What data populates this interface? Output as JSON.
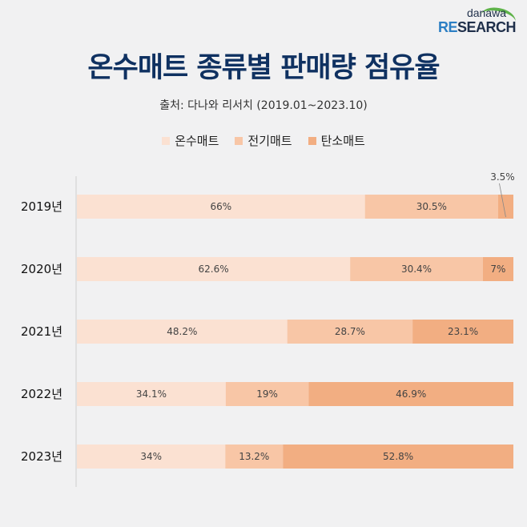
{
  "logo": {
    "top": "danawa",
    "re": "RE",
    "rest": "SEARCH"
  },
  "chart_data": {
    "type": "bar",
    "orientation": "horizontal",
    "stacked": true,
    "title": "온수매트 종류별 판매량 점유율",
    "subtitle": "출처: 다나와 리서치 (2019.01~2023.10)",
    "categories": [
      "2019년",
      "2020년",
      "2021년",
      "2022년",
      "2023년"
    ],
    "series": [
      {
        "name": "온수매트",
        "color": "#fbe1d2",
        "values": [
          66,
          62.6,
          48.2,
          34.1,
          34
        ],
        "labels": [
          "66%",
          "62.6%",
          "48.2%",
          "34.1%",
          "34%"
        ]
      },
      {
        "name": "전기매트",
        "color": "#f8c6a6",
        "values": [
          30.5,
          30.4,
          28.7,
          19,
          13.2
        ],
        "labels": [
          "30.5%",
          "30.4%",
          "28.7%",
          "19%",
          "13.2%"
        ]
      },
      {
        "name": "탄소매트",
        "color": "#f2ae82",
        "values": [
          3.5,
          7,
          23.1,
          46.9,
          52.8
        ],
        "labels": [
          "3.5%",
          "7%",
          "23.1%",
          "46.9%",
          "52.8%"
        ]
      }
    ],
    "xlim": [
      0,
      100
    ],
    "legend": "top-center",
    "grid": false
  }
}
